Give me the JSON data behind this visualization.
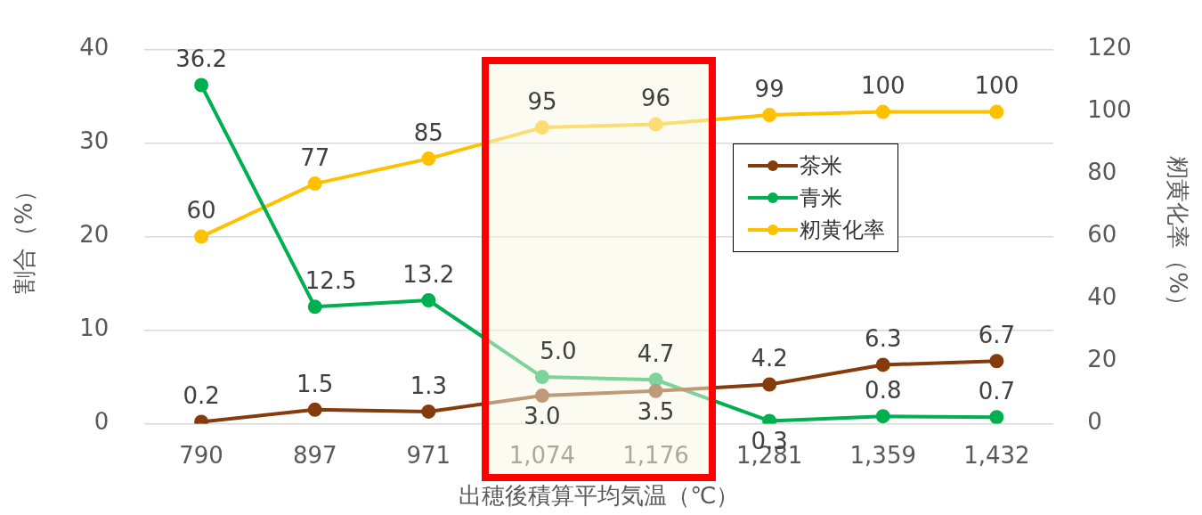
{
  "chart_data": {
    "type": "line",
    "xlabel": "出穂後積算平均気温（℃）",
    "ylabel": "割合（%）",
    "y2label": "籾黄化率（%）",
    "categories": [
      "790",
      "897",
      "971",
      "1,074",
      "1,176",
      "1,281",
      "1,359",
      "1,432"
    ],
    "series": [
      {
        "name": "茶米",
        "color": "#843c0c",
        "values": [
          0.2,
          1.5,
          1.3,
          3.0,
          3.5,
          4.2,
          6.3,
          6.7
        ],
        "value_labels": [
          "0.2",
          "1.5",
          "1.3",
          "3.0",
          "3.5",
          "4.2",
          "6.3",
          "6.7"
        ]
      },
      {
        "name": "青米",
        "color": "#00b050",
        "values": [
          36.2,
          12.5,
          13.2,
          5.0,
          4.7,
          0.3,
          0.8,
          0.7
        ],
        "value_labels": [
          "36.2",
          "12.5",
          "13.2",
          "5.0",
          "4.7",
          "0.3",
          "0.8",
          "0.7"
        ]
      },
      {
        "name": "籾黄化率",
        "color": "#ffc000",
        "axis": "y2",
        "values": [
          60,
          77,
          85,
          95,
          96,
          99,
          100,
          100
        ],
        "value_labels": [
          "60",
          "77",
          "85",
          "95",
          "96",
          "99",
          "100",
          "100"
        ]
      }
    ],
    "ylim": [
      0,
      40
    ],
    "yticks": [
      0,
      10,
      20,
      30,
      40
    ],
    "y2lim": [
      0,
      120
    ],
    "y2ticks": [
      0,
      20,
      40,
      60,
      80,
      100,
      120
    ],
    "bands": [
      {
        "axis": "x",
        "from": "1,074",
        "to": "1,176",
        "color": "#faf8e6"
      }
    ],
    "grid": "y",
    "legend": "top right",
    "marker": "circle",
    "line_style": "solid"
  }
}
